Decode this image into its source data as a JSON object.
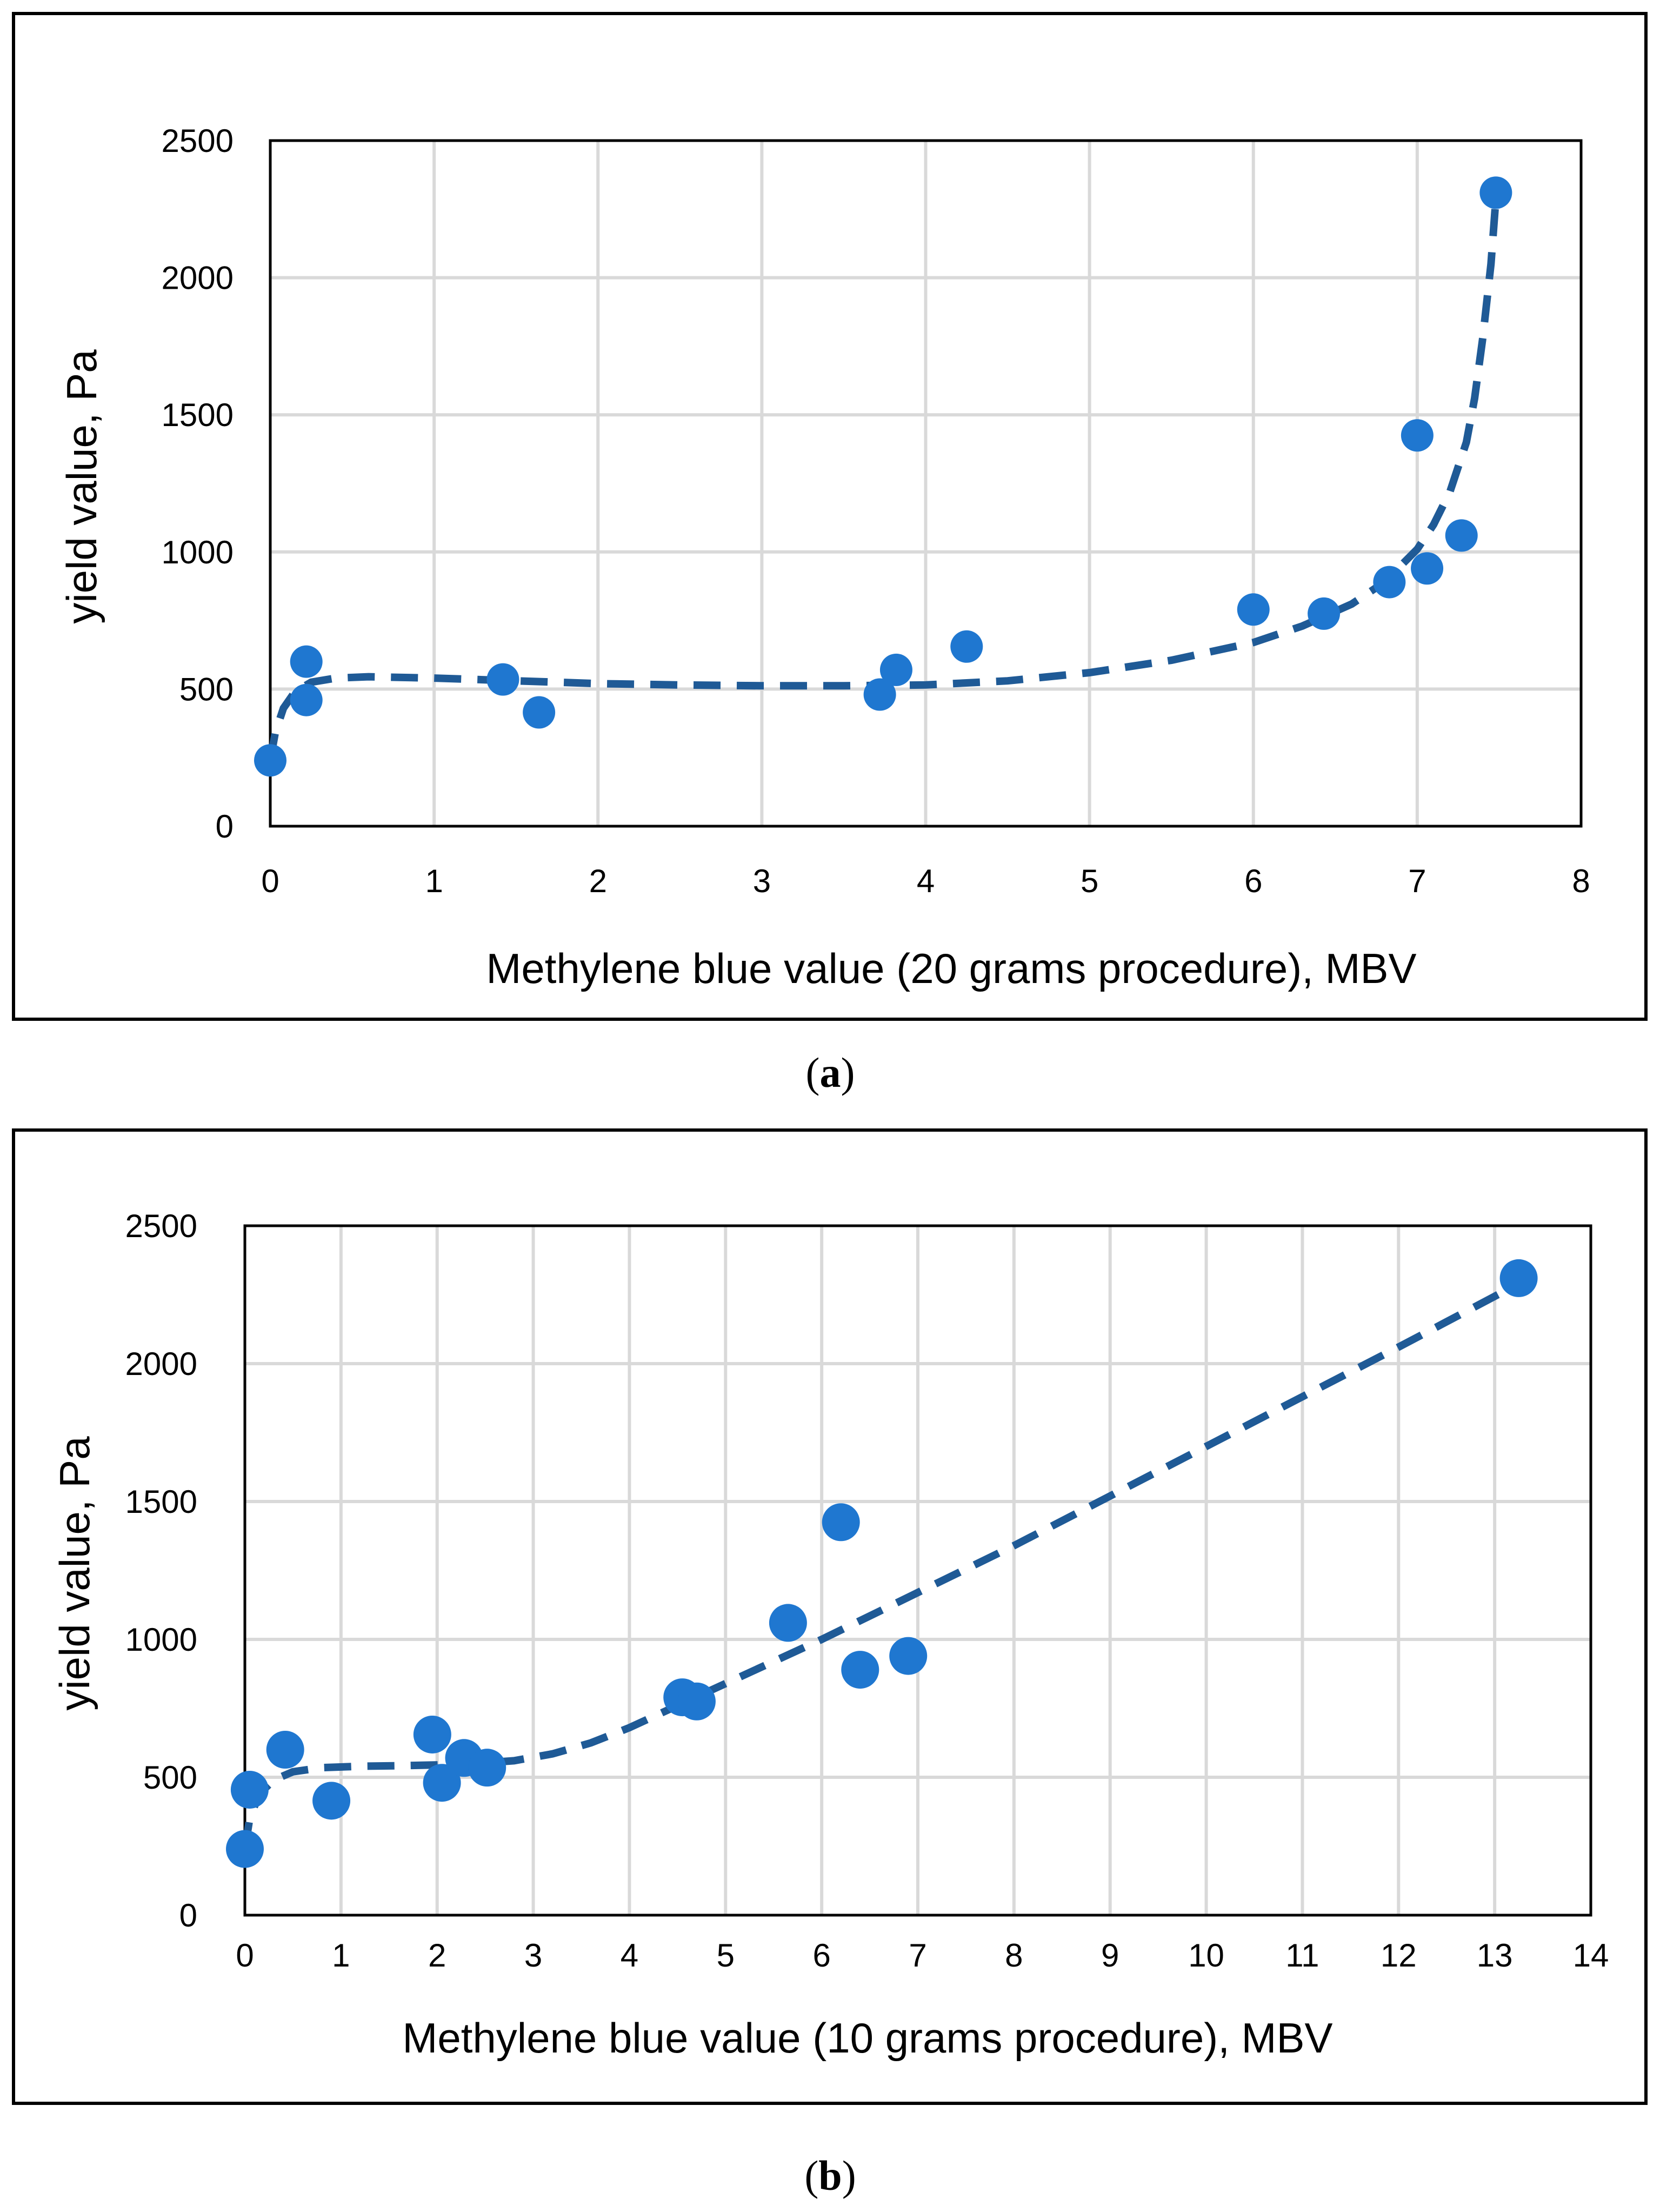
{
  "chart_data": [
    {
      "type": "scatter",
      "panel_label": "a",
      "xlabel": "Methylene blue value (20 grams procedure), MBV",
      "ylabel": "yield value, Pa",
      "xlim": [
        0,
        8
      ],
      "ylim": [
        0,
        2500
      ],
      "xticks": [
        0,
        1,
        2,
        3,
        4,
        5,
        6,
        7,
        8
      ],
      "yticks": [
        0,
        500,
        1000,
        1500,
        2000,
        2500
      ],
      "grid": true,
      "points": [
        {
          "x": 0.0,
          "y": 240
        },
        {
          "x": 0.22,
          "y": 600
        },
        {
          "x": 0.22,
          "y": 460
        },
        {
          "x": 1.42,
          "y": 535
        },
        {
          "x": 1.64,
          "y": 415
        },
        {
          "x": 3.72,
          "y": 480
        },
        {
          "x": 3.82,
          "y": 570
        },
        {
          "x": 4.25,
          "y": 655
        },
        {
          "x": 6.0,
          "y": 790
        },
        {
          "x": 6.43,
          "y": 775
        },
        {
          "x": 6.83,
          "y": 890
        },
        {
          "x": 7.0,
          "y": 1425
        },
        {
          "x": 7.06,
          "y": 940
        },
        {
          "x": 7.27,
          "y": 1060
        },
        {
          "x": 7.48,
          "y": 2310
        }
      ],
      "trendline": {
        "style": "dashed",
        "x": [
          0.0,
          0.03,
          0.08,
          0.15,
          0.25,
          0.4,
          0.6,
          1.0,
          1.5,
          2.0,
          2.5,
          3.0,
          3.5,
          4.0,
          4.5,
          5.0,
          5.5,
          6.0,
          6.3,
          6.6,
          6.8,
          7.0,
          7.1,
          7.2,
          7.3,
          7.35,
          7.4,
          7.45,
          7.48
        ],
        "y": [
          240,
          340,
          430,
          490,
          525,
          540,
          545,
          540,
          530,
          520,
          515,
          512,
          512,
          515,
          530,
          560,
          605,
          670,
          730,
          810,
          890,
          1010,
          1100,
          1220,
          1400,
          1560,
          1780,
          2050,
          2290
        ]
      }
    },
    {
      "type": "scatter",
      "panel_label": "b",
      "xlabel": "Methylene blue value (10 grams procedure), MBV",
      "ylabel": "yield value, Pa",
      "xlim": [
        0,
        14
      ],
      "ylim": [
        0,
        2500
      ],
      "xticks": [
        0,
        1,
        2,
        3,
        4,
        5,
        6,
        7,
        8,
        9,
        10,
        11,
        12,
        13,
        14
      ],
      "yticks": [
        0,
        500,
        1000,
        1500,
        2000,
        2500
      ],
      "grid": true,
      "points": [
        {
          "x": 0.0,
          "y": 240
        },
        {
          "x": 0.05,
          "y": 455
        },
        {
          "x": 0.42,
          "y": 600
        },
        {
          "x": 0.9,
          "y": 415
        },
        {
          "x": 1.95,
          "y": 655
        },
        {
          "x": 2.05,
          "y": 480
        },
        {
          "x": 2.28,
          "y": 570
        },
        {
          "x": 2.52,
          "y": 535
        },
        {
          "x": 4.55,
          "y": 790
        },
        {
          "x": 4.7,
          "y": 775
        },
        {
          "x": 5.65,
          "y": 1060
        },
        {
          "x": 6.2,
          "y": 1425
        },
        {
          "x": 6.4,
          "y": 890
        },
        {
          "x": 6.9,
          "y": 940
        },
        {
          "x": 13.25,
          "y": 2310
        }
      ],
      "trendline": {
        "style": "dashed",
        "x": [
          0.0,
          0.05,
          0.15,
          0.3,
          0.5,
          0.8,
          1.2,
          1.6,
          2.0,
          2.4,
          2.8,
          3.2,
          3.6,
          4.0,
          4.5,
          5.0,
          5.5,
          6.0,
          6.5,
          7.0,
          8.0,
          9.0,
          10.0,
          11.0,
          12.0,
          13.25
        ],
        "y": [
          240,
          350,
          440,
          490,
          520,
          535,
          540,
          542,
          545,
          550,
          560,
          585,
          625,
          680,
          760,
          840,
          920,
          1000,
          1085,
          1170,
          1340,
          1520,
          1700,
          1880,
          2060,
          2290
        ]
      }
    }
  ]
}
